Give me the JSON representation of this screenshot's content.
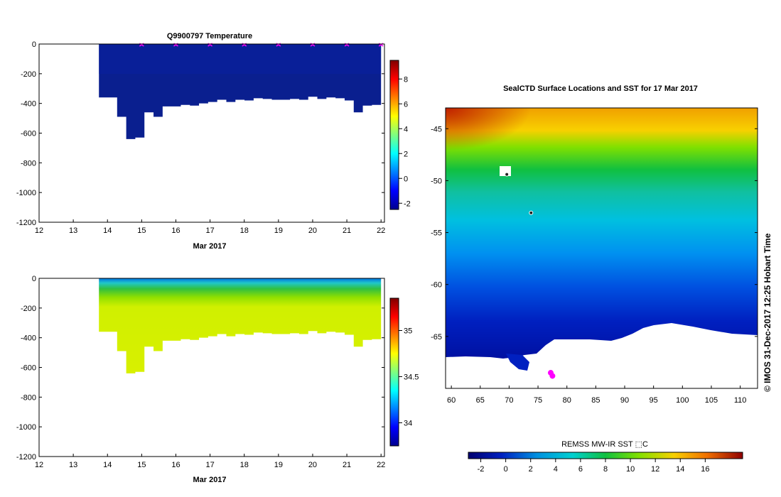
{
  "colors": {
    "axis": "#000000",
    "marker": "#ff00ff",
    "land": "#ffffff"
  },
  "chart_data": [
    {
      "type": "heatmap",
      "title": "Q9900797  Temperature",
      "xlabel": "Mar 2017",
      "xlim": [
        12,
        22.1
      ],
      "ylim": [
        -1200,
        0
      ],
      "x_ticks": [
        "12",
        "13",
        "14",
        "15",
        "16",
        "17",
        "18",
        "19",
        "20",
        "21",
        "22"
      ],
      "y_ticks": [
        "0",
        "-200",
        "-400",
        "-600",
        "-800",
        "-1000",
        "-1200"
      ],
      "colorbar": {
        "ticks": [
          "8",
          "6",
          "4",
          "2",
          "0",
          "-2"
        ],
        "range": [
          -2.5,
          9.5
        ]
      },
      "profile_start": 13.75,
      "profile_bottom_depth": [
        -360,
        -360,
        -490,
        -640,
        -630,
        -460,
        -490,
        -420,
        -420,
        -410,
        -415,
        -400,
        -390,
        -375,
        -390,
        -375,
        -380,
        -365,
        -370,
        -375,
        -375,
        -370,
        -375,
        -355,
        -370,
        -360,
        -365,
        -380,
        -460,
        -415,
        -410
      ],
      "surface_markers_x": [
        15,
        16,
        17,
        18,
        19,
        20,
        21,
        22
      ]
    },
    {
      "type": "heatmap",
      "title": "",
      "xlabel": "Mar 2017",
      "xlim": [
        12,
        22.1
      ],
      "ylim": [
        -1200,
        0
      ],
      "x_ticks": [
        "12",
        "13",
        "14",
        "15",
        "16",
        "17",
        "18",
        "19",
        "20",
        "21",
        "22"
      ],
      "y_ticks": [
        "0",
        "-200",
        "-400",
        "-600",
        "-800",
        "-1000",
        "-1200"
      ],
      "colorbar": {
        "ticks": [
          "35",
          "34.5",
          "34"
        ],
        "range": [
          33.75,
          35.35
        ]
      }
    },
    {
      "type": "heatmap",
      "title": "SealCTD Surface Locations and SST for 17 Mar 2017",
      "xlabel": "",
      "ylabel": "",
      "xlim": [
        59,
        113
      ],
      "ylim": [
        -70,
        -43
      ],
      "x_ticks": [
        "60",
        "65",
        "70",
        "75",
        "80",
        "85",
        "90",
        "95",
        "100",
        "105",
        "110"
      ],
      "y_ticks": [
        "-45",
        "-50",
        "-55",
        "-60",
        "-65"
      ],
      "colorbar": {
        "label": "REMSS MW-IR SST ⬚C",
        "ticks": [
          "-2",
          "0",
          "2",
          "4",
          "6",
          "8",
          "10",
          "12",
          "14",
          "16"
        ],
        "range": [
          -3,
          19
        ]
      },
      "seal_locations": [
        {
          "lon": 69.6,
          "lat": -49.4
        },
        {
          "lon": 73.8,
          "lat": -53.1
        },
        {
          "lon": 77.2,
          "lat": -68.5
        },
        {
          "lon": 77.5,
          "lat": -68.8
        }
      ]
    }
  ],
  "credit": "© IMOS 31-Dec-2017 12:25 Hobart Time"
}
